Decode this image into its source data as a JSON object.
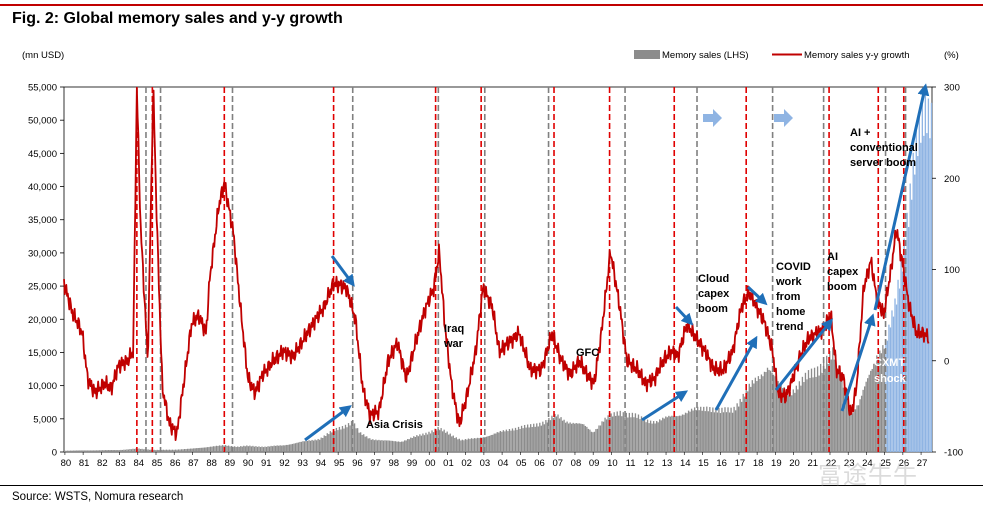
{
  "figure": {
    "title": "Fig. 2: Global memory sales and y-y growth",
    "source": "Source: WSTS, Nomura research",
    "watermark": "富途牛牛"
  },
  "colors": {
    "sales_bars": "#8c8c8c",
    "sales_bars_forecast": "#8fb4e3",
    "growth_line": "#c00000",
    "red_dashed": "#e00000",
    "grey_dashed": "#808080",
    "arrow": "#1f6fb8",
    "arrow_light": "#8fb4e3"
  },
  "chart_data": {
    "type": "bar+line",
    "x_tick_labels": [
      "80",
      "81",
      "82",
      "83",
      "84",
      "85",
      "86",
      "87",
      "88",
      "89",
      "90",
      "91",
      "92",
      "93",
      "94",
      "95",
      "96",
      "97",
      "98",
      "99",
      "00",
      "01",
      "02",
      "03",
      "04",
      "05",
      "06",
      "07",
      "08",
      "09",
      "10",
      "11",
      "12",
      "13",
      "14",
      "15",
      "16",
      "17",
      "18",
      "19",
      "20",
      "21",
      "22",
      "23",
      "24",
      "25",
      "26",
      "27"
    ],
    "left_axis": {
      "label": "(mn USD)",
      "ylim": [
        0,
        55000
      ],
      "ticks": [
        0,
        5000,
        10000,
        15000,
        20000,
        25000,
        30000,
        35000,
        40000,
        45000,
        50000,
        55000
      ],
      "tick_labels": [
        "0",
        "5,000",
        "10,000",
        "15,000",
        "20,000",
        "25,000",
        "30,000",
        "35,000",
        "40,000",
        "45,000",
        "50,000",
        "55,000"
      ]
    },
    "right_axis": {
      "label": "(%)",
      "ylim": [
        -100,
        300
      ],
      "ticks": [
        -100,
        0,
        100,
        200,
        300
      ],
      "tick_labels": [
        "-100",
        "0",
        "100",
        "200",
        "300"
      ]
    },
    "legend": {
      "placement": "top-right",
      "bars": "Memory sales (LHS)",
      "line": "Memory sales y-y growth"
    },
    "series": [
      {
        "name": "Memory sales (LHS)",
        "axis": "left",
        "knots_year_value": [
          [
            1980,
            200
          ],
          [
            1983,
            300
          ],
          [
            1984,
            500
          ],
          [
            1985,
            300
          ],
          [
            1986,
            350
          ],
          [
            1987,
            500
          ],
          [
            1988,
            800
          ],
          [
            1988.8,
            1000
          ],
          [
            1989.5,
            800
          ],
          [
            1990,
            900
          ],
          [
            1991,
            800
          ],
          [
            1992,
            1000
          ],
          [
            1993,
            1500
          ],
          [
            1994,
            2000
          ],
          [
            1995,
            3500
          ],
          [
            1995.8,
            4500
          ],
          [
            1996.2,
            2800
          ],
          [
            1996.8,
            2000
          ],
          [
            1997.5,
            1700
          ],
          [
            1998.5,
            1600
          ],
          [
            1999.5,
            2500
          ],
          [
            2000.5,
            3500
          ],
          [
            2001.2,
            2600
          ],
          [
            2001.8,
            1800
          ],
          [
            2002.5,
            2000
          ],
          [
            2003.5,
            2600
          ],
          [
            2004.5,
            3500
          ],
          [
            2005.5,
            3800
          ],
          [
            2006.5,
            4700
          ],
          [
            2007,
            5400
          ],
          [
            2007.5,
            4700
          ],
          [
            2008.5,
            4000
          ],
          [
            2009,
            3000
          ],
          [
            2009.6,
            4800
          ],
          [
            2010.5,
            6000
          ],
          [
            2011.2,
            5500
          ],
          [
            2011.8,
            4800
          ],
          [
            2012.5,
            4600
          ],
          [
            2013.5,
            5500
          ],
          [
            2014.5,
            6200
          ],
          [
            2015.3,
            6800
          ],
          [
            2016,
            6000
          ],
          [
            2016.7,
            6500
          ],
          [
            2017.3,
            8500
          ],
          [
            2018,
            11000
          ],
          [
            2018.6,
            13000
          ],
          [
            2019.2,
            10000
          ],
          [
            2019.8,
            9000
          ],
          [
            2020.5,
            10500
          ],
          [
            2021.5,
            13000
          ],
          [
            2022.2,
            14500
          ],
          [
            2022.8,
            10000
          ],
          [
            2023.2,
            6000
          ],
          [
            2023.6,
            7000
          ],
          [
            2024.2,
            12000
          ],
          [
            2024.6,
            15000
          ],
          [
            2025.1,
            16000
          ],
          [
            2025.6,
            22000
          ],
          [
            2026.1,
            32000
          ],
          [
            2026.6,
            42000
          ],
          [
            2027,
            48000
          ],
          [
            2027.3,
            52000
          ]
        ],
        "forecast_from": 2025
      },
      {
        "name": "Memory sales y-y growth",
        "axis": "right",
        "knots_year_value": [
          [
            1980,
            85
          ],
          [
            1980.5,
            50
          ],
          [
            1980.8,
            40
          ],
          [
            1981,
            30
          ],
          [
            1981.3,
            -20
          ],
          [
            1981.7,
            -35
          ],
          [
            1982.2,
            -25
          ],
          [
            1982.6,
            -30
          ],
          [
            1983,
            -5
          ],
          [
            1983.5,
            0
          ],
          [
            1983.8,
            10
          ],
          [
            1984,
            300
          ],
          [
            1984.2,
            150
          ],
          [
            1984.6,
            0
          ],
          [
            1984.9,
            300
          ],
          [
            1985.1,
            150
          ],
          [
            1985.4,
            -30
          ],
          [
            1985.8,
            -70
          ],
          [
            1986.2,
            -80
          ],
          [
            1986.6,
            -20
          ],
          [
            1987,
            40
          ],
          [
            1987.4,
            50
          ],
          [
            1987.8,
            30
          ],
          [
            1988,
            90
          ],
          [
            1988.5,
            170
          ],
          [
            1988.8,
            195
          ],
          [
            1989.3,
            140
          ],
          [
            1989.7,
            55
          ],
          [
            1990.1,
            -20
          ],
          [
            1990.5,
            -35
          ],
          [
            1990.9,
            -15
          ],
          [
            1991.5,
            0
          ],
          [
            1992,
            10
          ],
          [
            1992.6,
            5
          ],
          [
            1993.2,
            25
          ],
          [
            1993.8,
            45
          ],
          [
            1994.3,
            60
          ],
          [
            1994.8,
            85
          ],
          [
            1995.5,
            80
          ],
          [
            1996,
            45
          ],
          [
            1996.4,
            -30
          ],
          [
            1996.8,
            -60
          ],
          [
            1997.3,
            -55
          ],
          [
            1997.8,
            0
          ],
          [
            1998.3,
            20
          ],
          [
            1998.8,
            -20
          ],
          [
            1999.3,
            20
          ],
          [
            1999.8,
            55
          ],
          [
            2000.3,
            80
          ],
          [
            2000.6,
            120
          ],
          [
            2000.9,
            40
          ],
          [
            2001.3,
            -30
          ],
          [
            2001.7,
            -70
          ],
          [
            2002.1,
            -40
          ],
          [
            2002.6,
            10
          ],
          [
            2003,
            80
          ],
          [
            2003.5,
            60
          ],
          [
            2003.9,
            10
          ],
          [
            2004.4,
            20
          ],
          [
            2005,
            30
          ],
          [
            2005.6,
            -10
          ],
          [
            2006.2,
            -10
          ],
          [
            2006.8,
            30
          ],
          [
            2007.3,
            0
          ],
          [
            2007.8,
            -15
          ],
          [
            2008.3,
            0
          ],
          [
            2008.7,
            -15
          ],
          [
            2009.1,
            -25
          ],
          [
            2009.5,
            30
          ],
          [
            2010,
            120
          ],
          [
            2010.5,
            60
          ],
          [
            2010.9,
            0
          ],
          [
            2011.5,
            -10
          ],
          [
            2011.9,
            -25
          ],
          [
            2012.4,
            -20
          ],
          [
            2012.9,
            0
          ],
          [
            2013.3,
            10
          ],
          [
            2013.7,
            5
          ],
          [
            2014.2,
            40
          ],
          [
            2014.7,
            25
          ],
          [
            2015.2,
            10
          ],
          [
            2015.7,
            -10
          ],
          [
            2016.2,
            -10
          ],
          [
            2016.7,
            10
          ],
          [
            2017.2,
            60
          ],
          [
            2017.6,
            75
          ],
          [
            2018,
            60
          ],
          [
            2018.5,
            40
          ],
          [
            2018.9,
            10
          ],
          [
            2019.2,
            -35
          ],
          [
            2019.6,
            -40
          ],
          [
            2020,
            -20
          ],
          [
            2020.5,
            10
          ],
          [
            2020.9,
            25
          ],
          [
            2021.3,
            30
          ],
          [
            2021.7,
            35
          ],
          [
            2022.1,
            50
          ],
          [
            2022.4,
            -10
          ],
          [
            2022.8,
            -20
          ],
          [
            2023.2,
            -60
          ],
          [
            2023.5,
            -30
          ],
          [
            2023.9,
            80
          ],
          [
            2024.3,
            110
          ],
          [
            2024.6,
            70
          ],
          [
            2025,
            50
          ],
          [
            2025.4,
            100
          ],
          [
            2025.7,
            145
          ],
          [
            2026,
            110
          ],
          [
            2026.4,
            60
          ],
          [
            2026.8,
            30
          ],
          [
            2027.2,
            30
          ],
          [
            2027.5,
            25
          ]
        ]
      }
    ],
    "vertical_lines": {
      "red_dashed": [
        1984.0,
        1984.85,
        1988.8,
        1994.8,
        2000.4,
        2002.9,
        2006.9,
        2009.95,
        2013.5,
        2017.45,
        2022.0,
        2024.7,
        2026.1
      ],
      "grey_dashed": [
        1984.5,
        1985.3,
        1989.25,
        1995.85,
        2000.55,
        2003.1,
        2006.6,
        2010.8,
        2014.75,
        2018.9,
        2021.7,
        2025.1,
        2026.2
      ]
    },
    "annotations": [
      "Asia Crisis",
      "Iraq war",
      "GFC",
      "Cloud capex boom",
      "COVID work from home trend",
      "AI capex boom",
      "AI + conventional server boom",
      "CXMT shock"
    ]
  }
}
